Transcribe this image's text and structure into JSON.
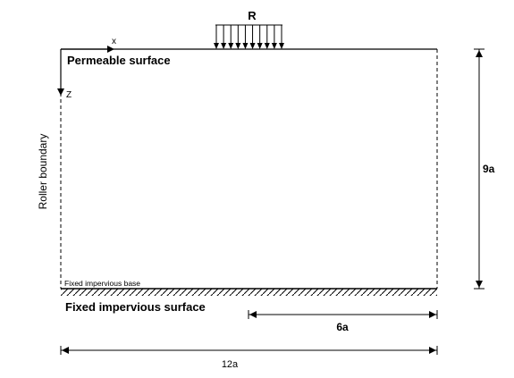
{
  "diagram": {
    "load_label": "R",
    "x_axis_label": "x",
    "z_axis_label": "Z",
    "top_label": "Permeable surface",
    "left_label": "Roller boundary",
    "base_label_small": "Fixed impervious base",
    "bottom_label": "Fixed impervious surface",
    "height_label": "9a",
    "half_width_label": "6a",
    "width_label": "12a",
    "load_arrow_count": 10
  },
  "colors": {
    "line": "#000000",
    "background": "#ffffff"
  }
}
